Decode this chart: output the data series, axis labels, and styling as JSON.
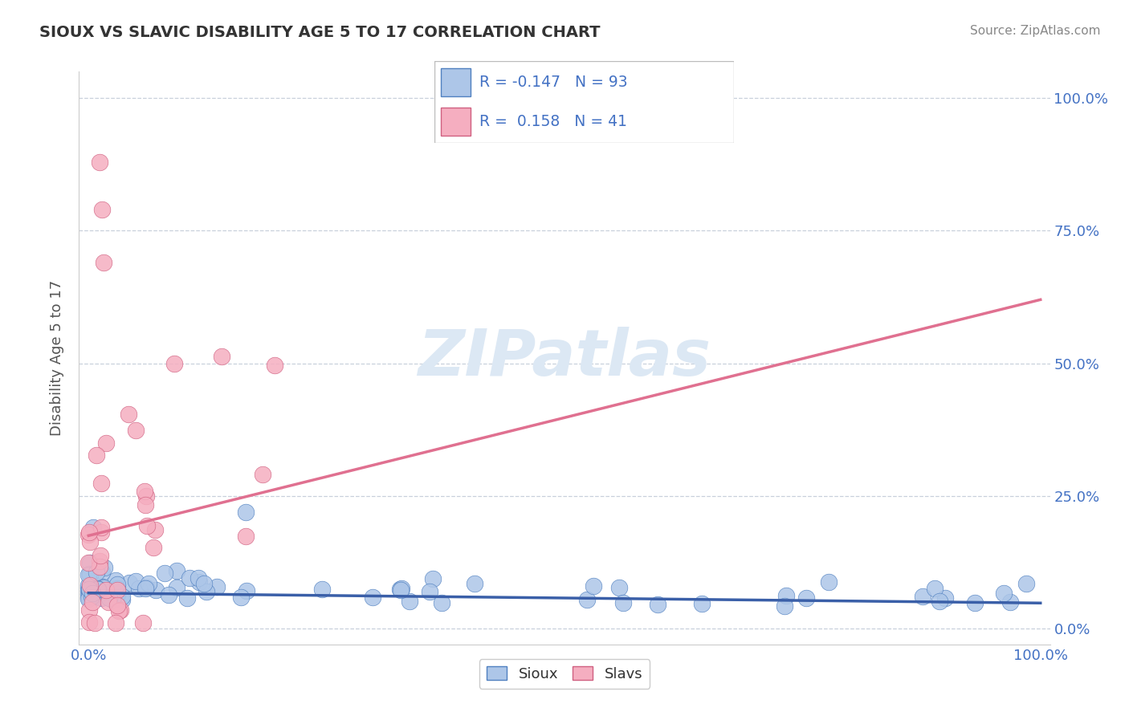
{
  "title": "SIOUX VS SLAVIC DISABILITY AGE 5 TO 17 CORRELATION CHART",
  "source": "Source: ZipAtlas.com",
  "ylabel": "Disability Age 5 to 17",
  "sioux_R": -0.147,
  "sioux_N": 93,
  "slavs_R": 0.158,
  "slavs_N": 41,
  "sioux_color": "#adc6e8",
  "slavs_color": "#f5aec0",
  "sioux_line_color": "#3a5fa8",
  "slavs_line_color": "#e07090",
  "sioux_edge_color": "#5080c0",
  "slavs_edge_color": "#d06080",
  "grid_color": "#c8d0dc",
  "watermark_color": "#dce8f4",
  "title_color": "#333333",
  "source_color": "#888888",
  "tick_color": "#4472c4",
  "ylabel_color": "#555555"
}
